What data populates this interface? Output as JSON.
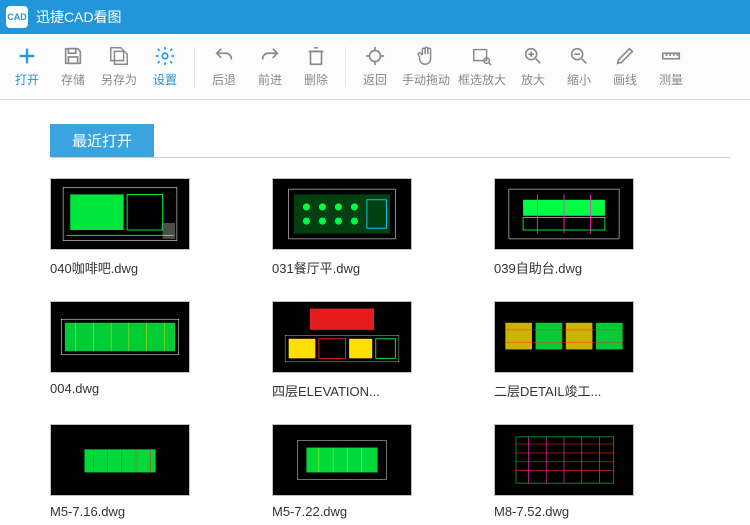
{
  "app": {
    "logoText": "CAD",
    "title": "迅捷CAD看图"
  },
  "toolbar": {
    "open": {
      "label": "打开"
    },
    "save": {
      "label": "存储"
    },
    "saveas": {
      "label": "另存为"
    },
    "settings": {
      "label": "设置"
    },
    "back": {
      "label": "后退"
    },
    "forward": {
      "label": "前进"
    },
    "delete": {
      "label": "删除"
    },
    "return": {
      "label": "返回"
    },
    "pan": {
      "label": "手动拖动"
    },
    "zoomwin": {
      "label": "框选放大"
    },
    "zoomin": {
      "label": "放大"
    },
    "zoomout": {
      "label": "缩小"
    },
    "line": {
      "label": "画线"
    },
    "measure": {
      "label": "测量"
    }
  },
  "section": {
    "recent": "最近打开"
  },
  "files": [
    {
      "name": "040咖啡吧.dwg"
    },
    {
      "name": "031餐厅平.dwg"
    },
    {
      "name": "039自助台.dwg"
    },
    {
      "name": "004.dwg"
    },
    {
      "name": "四层ELEVATION..."
    },
    {
      "name": "二层DETAIL竣工..."
    },
    {
      "name": "M5-7.16.dwg"
    },
    {
      "name": "M5-7.22.dwg"
    },
    {
      "name": "M8-7.52.dwg"
    }
  ],
  "colors": {
    "accent": "#2196d8",
    "toolbarText": "#8a8a8a",
    "thumbBg": "#000000",
    "cadGreen": "#00ff44",
    "cadYellow": "#ffe000",
    "cadRed": "#ff2020",
    "cadCyan": "#20d0ff",
    "cadMagenta": "#ff30d0"
  }
}
